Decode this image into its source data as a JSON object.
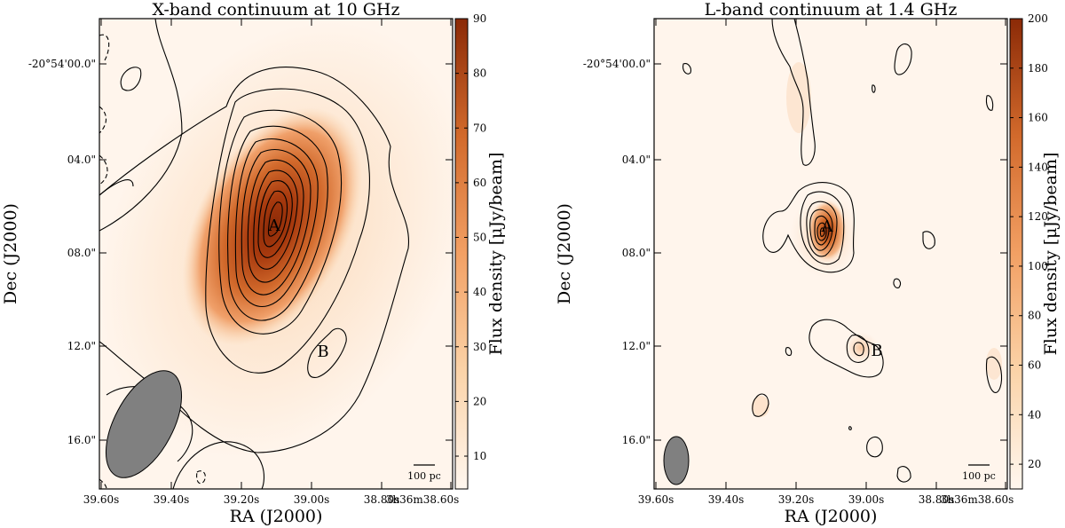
{
  "panels": [
    {
      "title": "X-band continuum at 10 GHz",
      "xlabel": "RA (J2000)",
      "ylabel": "Dec (J2000)",
      "ra_ticks": [
        "39.60s",
        "39.40s",
        "39.20s",
        "39.00s",
        "38.80s",
        "3h36m38.60s"
      ],
      "dec_ticks": [
        "-20°54'00.0\"",
        "04.0\"",
        "08.0\"",
        "12.0\"",
        "16.0\""
      ],
      "colorbar_label": "Flux density [μJy/beam]",
      "colorbar_ticks": [
        "10",
        "20",
        "30",
        "40",
        "50",
        "60",
        "70",
        "80",
        "90"
      ],
      "colorbar_range": [
        4,
        90
      ],
      "sources": [
        "A",
        "B"
      ],
      "scalebar_label": "100 pc",
      "colors": {
        "low": "#fff8f0",
        "high": "#8b2a07",
        "beam": "#808080"
      }
    },
    {
      "title": "L-band continuum at 1.4 GHz",
      "xlabel": "RA (J2000)",
      "ylabel": "Dec (J2000)",
      "ra_ticks": [
        "39.60s",
        "39.40s",
        "39.20s",
        "39.00s",
        "38.80s",
        "3h36m38.60s"
      ],
      "dec_ticks": [
        "-20°54'00.0\"",
        "04.0\"",
        "08.0\"",
        "12.0\"",
        "16.0\""
      ],
      "colorbar_label": "Flux density [μJy/beam]",
      "colorbar_ticks": [
        "20",
        "40",
        "60",
        "80",
        "100",
        "120",
        "140",
        "160",
        "180",
        "200"
      ],
      "colorbar_range": [
        10,
        200
      ],
      "sources": [
        "A",
        "B"
      ],
      "scalebar_label": "100 pc",
      "colors": {
        "low": "#fff8f0",
        "high": "#8b2a07",
        "beam": "#808080"
      }
    }
  ]
}
